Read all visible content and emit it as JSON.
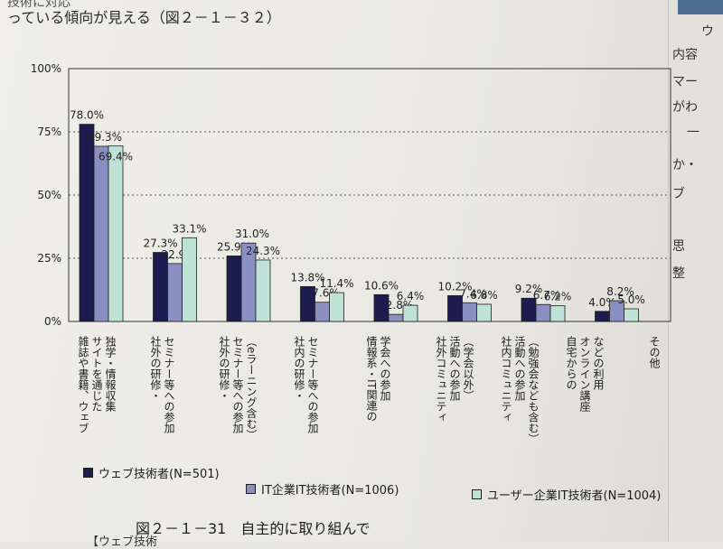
{
  "page": {
    "top_line_1": "技術に対応",
    "top_line_2": "っている傾向が見える（図２－１－３２）",
    "caption": "図２－１－31　自主的に取り組んで",
    "caption_sub": "【ウェブ技術",
    "side_lines": [
      "ウ",
      "内容",
      "マー",
      "がわ",
      "一",
      "か・",
      "ブ",
      "思",
      "整"
    ]
  },
  "chart_data": {
    "type": "bar",
    "ylim": [
      0,
      100
    ],
    "yticks": [
      "0%",
      "25%",
      "50%",
      "75%",
      "100%"
    ],
    "grid": "dashed at 50%, 75%, 100%",
    "legend_position": "bottom",
    "categories": [
      [
        "雑誌や書籍、ウェブ",
        "サイトを通じた",
        "独学・情報収集"
      ],
      [
        "社外の研修・",
        "セミナー等への参加"
      ],
      [
        "社外の研修・",
        "セミナー等への参加",
        "（eラーニング含む）"
      ],
      [
        "社内の研修・",
        "セミナー等への参加"
      ],
      [
        "情報系・IT関連の",
        "学会への参加"
      ],
      [
        "社外コミュニティ",
        "活動への参加",
        "（学会以外）"
      ],
      [
        "社内コミュニティ",
        "活動への参加",
        "（勉強会なども含む）"
      ],
      [
        "自宅からの",
        "オンライン講座",
        "などの利用"
      ],
      [
        "その他"
      ]
    ],
    "series": [
      {
        "name": "ウェブ技術者(N=501)",
        "color": "#1c1d4e",
        "values": [
          78.0,
          27.3,
          25.9,
          13.8,
          10.6,
          10.2,
          9.2,
          4.0,
          0
        ]
      },
      {
        "name": "IT企業IT技術者(N=1006)",
        "color": "#8a8fc2",
        "values": [
          69.3,
          22.9,
          31.0,
          7.6,
          2.8,
          7.4,
          6.7,
          8.2,
          0
        ]
      },
      {
        "name": "ユーザー企業IT技術者(N=1004)",
        "color": "#bfe2d6",
        "values": [
          69.4,
          33.1,
          24.3,
          11.4,
          6.4,
          6.8,
          6.2,
          5.0,
          0
        ]
      }
    ],
    "groups_drawn": [
      [
        78.0,
        69.3,
        69.4
      ],
      [
        27.3,
        22.9,
        33.1
      ],
      [
        25.9,
        31.0,
        24.3
      ],
      [
        13.8,
        7.6,
        11.4
      ],
      [
        10.6,
        2.8,
        6.4
      ],
      [
        10.2,
        7.4,
        6.8
      ],
      [
        9.2,
        6.7,
        6.2
      ],
      [
        4.0,
        8.2,
        5.0
      ]
    ],
    "group_labels": [
      [
        "雑誌や書籍、ウェブ",
        "サイトを通じた",
        "独学・情報収集"
      ],
      [
        "社外の研修・",
        "セミナー等への参加"
      ],
      [
        "社外の研修・",
        "セミナー等への参加",
        "（eラーニング含む）"
      ],
      [
        "社内の研修・",
        "セミナー等への参加"
      ],
      [
        "情報系・IT関連の",
        "学会への参加"
      ],
      [
        "社外コミュニティ",
        "活動への参加",
        "（学会以外）"
      ],
      [
        "社内コミュニティ",
        "活動への参加",
        "（勉強会なども含む）"
      ],
      [
        "自宅からの",
        "オンライン講座",
        "などの利用"
      ],
      [
        "その他"
      ]
    ],
    "value_labels": [
      [
        "78.0%",
        "69.3%",
        "69.4%"
      ],
      [
        "27.3%",
        "22.9%",
        "33.1%"
      ],
      [
        "25.9%",
        "31.0%",
        "24.3%"
      ],
      [
        "13.8%",
        "7.6%",
        "11.4%"
      ],
      [
        "10.6%",
        "2.8%",
        "6.4%"
      ],
      [
        "10.2%",
        "7.4%",
        "6.8%"
      ],
      [
        "9.2%",
        "6.7%",
        "6.2%"
      ],
      [
        "4.0%",
        "8.2%",
        "5.0%"
      ]
    ]
  }
}
